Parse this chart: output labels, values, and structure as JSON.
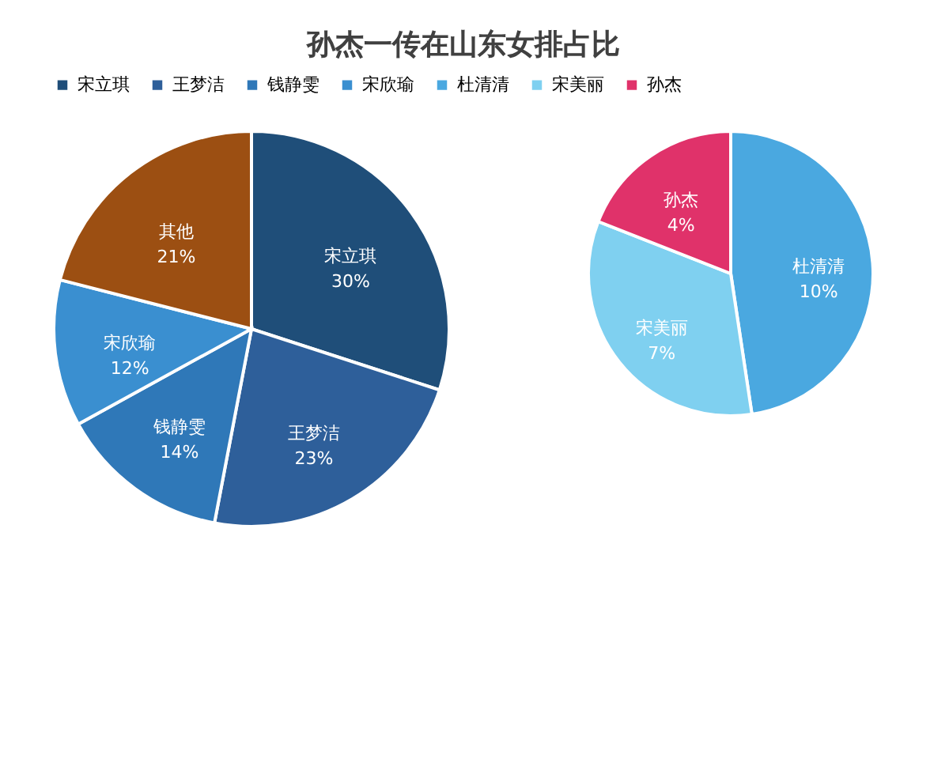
{
  "chart_data": [
    {
      "type": "pie",
      "title": "孙杰一传在山东女排占比",
      "legend": "top",
      "categories": [
        "宋立琪",
        "王梦洁",
        "钱静雯",
        "宋欣瑜",
        "其他"
      ],
      "values": [
        30,
        23,
        14,
        12,
        21
      ],
      "value_labels": [
        "30%",
        "23%",
        "14%",
        "12%",
        "21%"
      ],
      "colors": [
        "#1f4e79",
        "#2e5f9a",
        "#2f78b8",
        "#3a8fd0",
        "#9c4f12"
      ]
    },
    {
      "type": "pie",
      "legend": "top",
      "categories": [
        "杜清清",
        "宋美丽",
        "孙杰"
      ],
      "values": [
        10,
        7,
        4
      ],
      "value_labels": [
        "10%",
        "7%",
        "4%"
      ],
      "colors": [
        "#4aa8e0",
        "#7fd0f0",
        "#e0326a"
      ]
    }
  ]
}
